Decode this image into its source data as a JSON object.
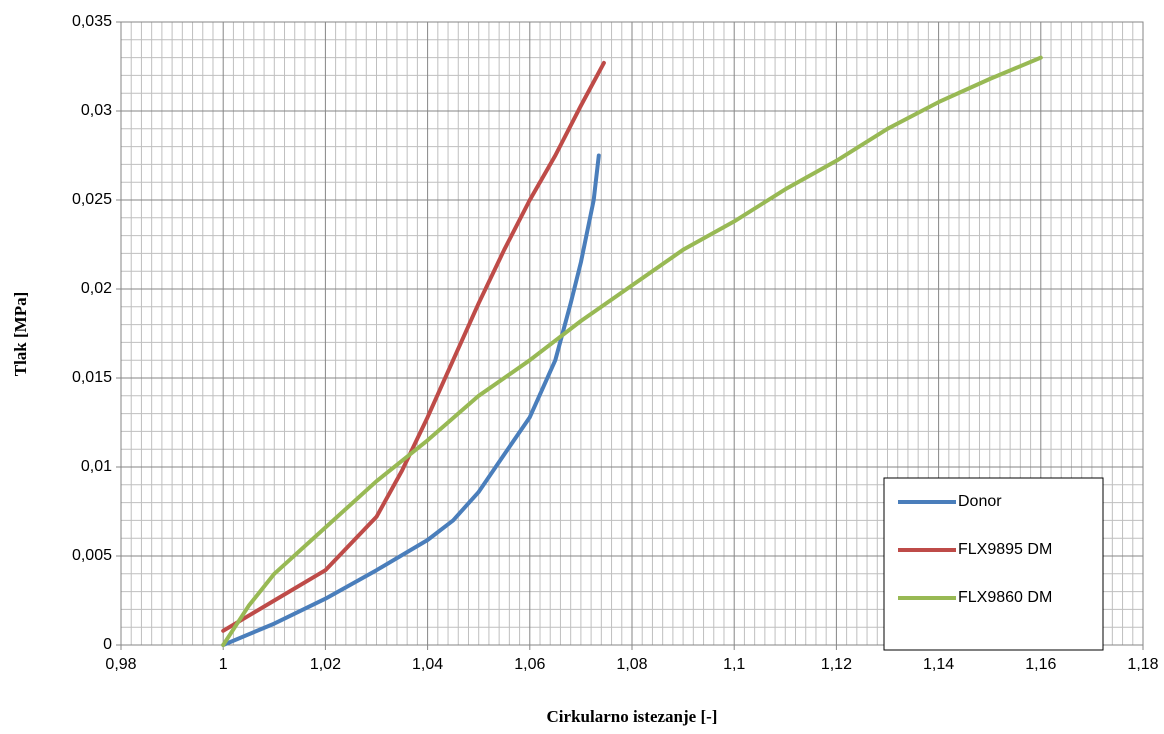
{
  "chart_data": {
    "type": "line",
    "xlabel": "Cirkularno istezanje [-]",
    "ylabel": "Tlak [MPa]",
    "xlim": [
      0.98,
      1.18
    ],
    "xticks": [
      {
        "value": 0.98,
        "label": "0,98"
      },
      1,
      {
        "value": 1.02,
        "label": "1,02"
      },
      {
        "value": 1.04,
        "label": "1,04"
      },
      {
        "value": 1.06,
        "label": "1,06"
      },
      {
        "value": 1.08,
        "label": "1,08"
      },
      {
        "value": 1.1,
        "label": "1,1"
      },
      {
        "value": 1.12,
        "label": "1,12"
      },
      {
        "value": 1.14,
        "label": "1,14"
      },
      {
        "value": 1.16,
        "label": "1,16"
      },
      {
        "value": 1.18,
        "label": "1,18"
      }
    ],
    "ylim": [
      0,
      0.035
    ],
    "yticks": [
      0,
      {
        "value": 0.005,
        "label": "0,005"
      },
      {
        "value": 0.01,
        "label": "0,01"
      },
      {
        "value": 0.015,
        "label": "0,015"
      },
      {
        "value": 0.02,
        "label": "0,02"
      },
      {
        "value": 0.025,
        "label": "0,025"
      },
      {
        "value": 0.03,
        "label": "0,03"
      },
      {
        "value": 0.035,
        "label": "0,035"
      }
    ],
    "grid": true,
    "legend": "lower right",
    "series": [
      {
        "name": "Donor",
        "color": "#4a7ebb",
        "x": [
          1.0,
          1.01,
          1.02,
          1.03,
          1.04,
          1.045,
          1.05,
          1.055,
          1.06,
          1.065,
          1.068,
          1.07,
          1.0725,
          1.0735
        ],
        "values": [
          0,
          0.0012,
          0.0026,
          0.0042,
          0.0059,
          0.007,
          0.0086,
          0.0107,
          0.0128,
          0.016,
          0.0192,
          0.0215,
          0.025,
          0.0275
        ]
      },
      {
        "name": "FLX9895 DM",
        "color": "#be4b48",
        "x": [
          1.0,
          1.01,
          1.02,
          1.03,
          1.035,
          1.04,
          1.045,
          1.05,
          1.055,
          1.06,
          1.065,
          1.07,
          1.0745
        ],
        "values": [
          0.0008,
          0.0025,
          0.0042,
          0.0072,
          0.0098,
          0.0128,
          0.016,
          0.0192,
          0.0222,
          0.025,
          0.0275,
          0.0303,
          0.0327
        ]
      },
      {
        "name": "FLX9860 DM",
        "color": "#98b954",
        "x": [
          1.0,
          1.005,
          1.01,
          1.02,
          1.03,
          1.04,
          1.05,
          1.06,
          1.07,
          1.08,
          1.09,
          1.1,
          1.11,
          1.12,
          1.13,
          1.14,
          1.15,
          1.16
        ],
        "values": [
          0,
          0.0022,
          0.004,
          0.0066,
          0.0092,
          0.0115,
          0.014,
          0.016,
          0.0182,
          0.0202,
          0.0222,
          0.0238,
          0.0256,
          0.0272,
          0.029,
          0.0305,
          0.0318,
          0.033
        ]
      }
    ]
  }
}
